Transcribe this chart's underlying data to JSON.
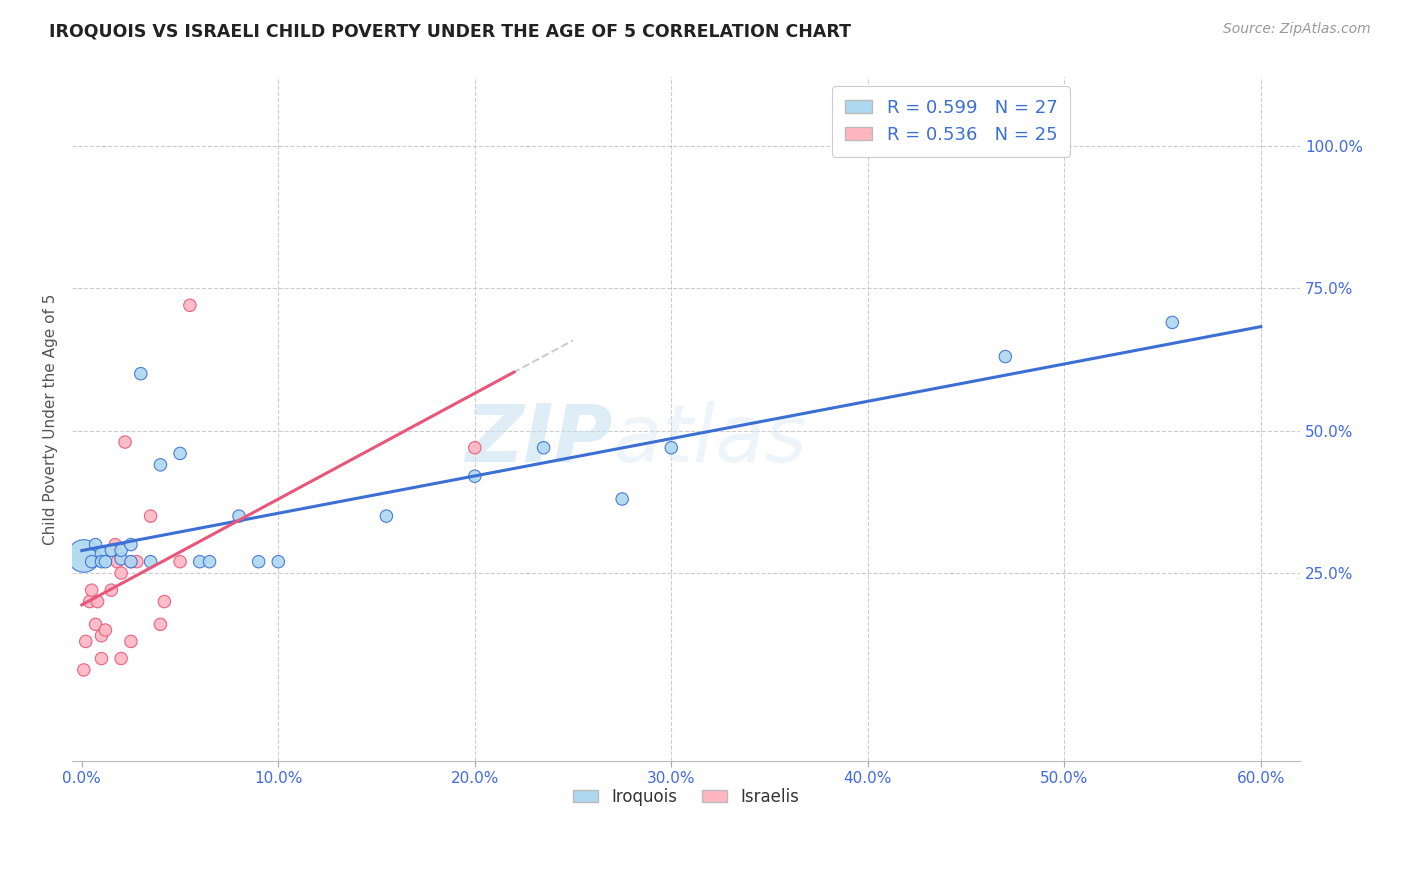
{
  "title": "IROQUOIS VS ISRAELI CHILD POVERTY UNDER THE AGE OF 5 CORRELATION CHART",
  "source": "Source: ZipAtlas.com",
  "ylabel": "Child Poverty Under the Age of 5",
  "xlabel_ticks": [
    "0.0%",
    "10.0%",
    "20.0%",
    "30.0%",
    "40.0%",
    "50.0%",
    "60.0%"
  ],
  "xlabel_vals": [
    0.0,
    0.1,
    0.2,
    0.3,
    0.4,
    0.5,
    0.6
  ],
  "ylabel_ticks_right": [
    "100.0%",
    "75.0%",
    "50.0%",
    "25.0%"
  ],
  "ylabel_vals_right": [
    1.0,
    0.75,
    0.5,
    0.25
  ],
  "xlim": [
    -0.005,
    0.62
  ],
  "ylim": [
    -0.08,
    1.12
  ],
  "iroquois_color": "#add8f0",
  "israelis_color": "#ffb6c1",
  "trend_iroquois_color": "#3b6fd4",
  "trend_israelis_color": "#e8567a",
  "legend_R_iroquois": "R = 0.599",
  "legend_N_iroquois": "N = 27",
  "legend_R_israelis": "R = 0.536",
  "legend_N_israelis": "N = 25",
  "watermark_zip": "ZIP",
  "watermark_atlas": "atlas",
  "iroquois_x": [
    0.001,
    0.005,
    0.007,
    0.01,
    0.01,
    0.012,
    0.015,
    0.02,
    0.02,
    0.025,
    0.025,
    0.03,
    0.035,
    0.04,
    0.05,
    0.06,
    0.065,
    0.08,
    0.09,
    0.1,
    0.155,
    0.2,
    0.235,
    0.275,
    0.3,
    0.47,
    0.555
  ],
  "iroquois_y": [
    0.28,
    0.27,
    0.3,
    0.285,
    0.27,
    0.27,
    0.29,
    0.275,
    0.29,
    0.27,
    0.3,
    0.6,
    0.27,
    0.44,
    0.46,
    0.27,
    0.27,
    0.35,
    0.27,
    0.27,
    0.35,
    0.42,
    0.47,
    0.38,
    0.47,
    0.63,
    0.69
  ],
  "iroquois_sizes": [
    550,
    80,
    80,
    80,
    80,
    80,
    80,
    80,
    80,
    80,
    80,
    80,
    80,
    80,
    80,
    80,
    80,
    80,
    80,
    80,
    80,
    80,
    80,
    80,
    80,
    80,
    80
  ],
  "israelis_x": [
    0.001,
    0.002,
    0.004,
    0.005,
    0.005,
    0.007,
    0.008,
    0.01,
    0.01,
    0.012,
    0.015,
    0.017,
    0.018,
    0.02,
    0.02,
    0.022,
    0.025,
    0.025,
    0.028,
    0.035,
    0.04,
    0.042,
    0.05,
    0.055,
    0.2
  ],
  "israelis_y": [
    0.08,
    0.13,
    0.2,
    0.27,
    0.22,
    0.16,
    0.2,
    0.1,
    0.14,
    0.15,
    0.22,
    0.3,
    0.27,
    0.1,
    0.25,
    0.48,
    0.27,
    0.13,
    0.27,
    0.35,
    0.16,
    0.2,
    0.27,
    0.72,
    0.47
  ],
  "israelis_sizes": [
    80,
    80,
    80,
    80,
    80,
    80,
    80,
    80,
    80,
    80,
    80,
    80,
    80,
    80,
    80,
    80,
    80,
    80,
    80,
    80,
    80,
    80,
    80,
    80,
    80
  ],
  "iroquois_label": "Iroquois",
  "israelis_label": "Israelis"
}
